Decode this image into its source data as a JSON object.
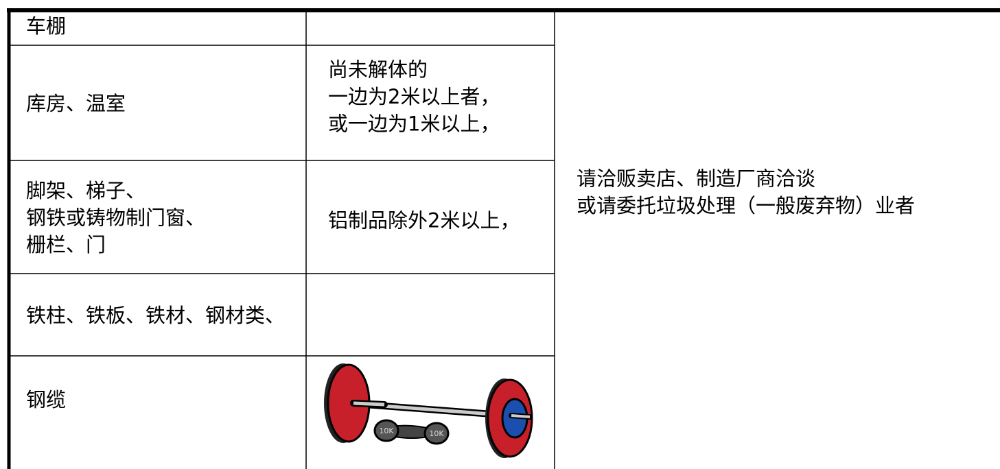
{
  "table": {
    "rows": [
      {
        "item": [
          "车棚"
        ]
      },
      {
        "item": [
          "库房、温室"
        ],
        "condition": [
          "尚未解体的",
          "一边为2米以上者，",
          "或一边为1米以上，"
        ]
      },
      {
        "item": [
          "脚架、梯子、",
          "钢铁或铸物制门窗、",
          "栅栏、门"
        ],
        "condition": [
          "铝制品除外2米以上，"
        ]
      },
      {
        "item": [
          "铁柱、铁板、铁材、钢材类、"
        ]
      },
      {
        "item": [
          "钢缆"
        ]
      }
    ],
    "note": [
      "请洽贩卖店、制造厂商洽谈",
      "或请委托垃圾处理（一般废弃物）业者"
    ]
  },
  "illustration": {
    "labels": [
      "10K",
      "10K"
    ]
  }
}
